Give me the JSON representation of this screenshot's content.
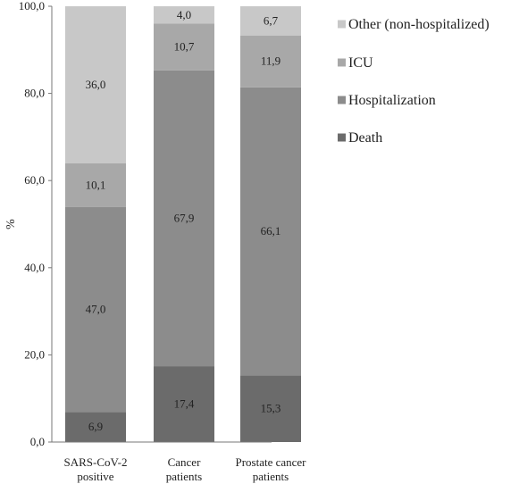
{
  "chart_data": {
    "type": "bar",
    "stacked": true,
    "title": "",
    "xlabel": "",
    "ylabel": "%",
    "ylim": [
      0,
      100
    ],
    "yticks": [
      "0,0",
      "20,0",
      "40,0",
      "60,0",
      "80,0",
      "100,0"
    ],
    "grid": false,
    "legend_position": "right",
    "categories": [
      [
        "SARS-CoV-2",
        "positive"
      ],
      [
        "Cancer",
        "patients"
      ],
      [
        "Prostate cancer",
        "patients"
      ]
    ],
    "series": [
      {
        "name": "Death",
        "color": "#6b6b6b",
        "values": [
          6.9,
          17.4,
          15.3
        ],
        "labels": [
          "6,9",
          "17,4",
          "15,3"
        ]
      },
      {
        "name": "Hospitalization",
        "color": "#8c8c8c",
        "values": [
          47.0,
          67.9,
          66.1
        ],
        "labels": [
          "47,0",
          "67,9",
          "66,1"
        ]
      },
      {
        "name": "ICU",
        "color": "#a8a8a8",
        "values": [
          10.1,
          10.7,
          11.9
        ],
        "labels": [
          "10,1",
          "10,7",
          "11,9"
        ]
      },
      {
        "name": "Other (non-hospitalized)",
        "color": "#c8c8c8",
        "values": [
          36.0,
          4.0,
          6.7
        ],
        "labels": [
          "36,0",
          "4,0",
          "6,7"
        ]
      }
    ],
    "legend_order": [
      "Other (non-hospitalized)",
      "ICU",
      "Hospitalization",
      "Death"
    ]
  }
}
